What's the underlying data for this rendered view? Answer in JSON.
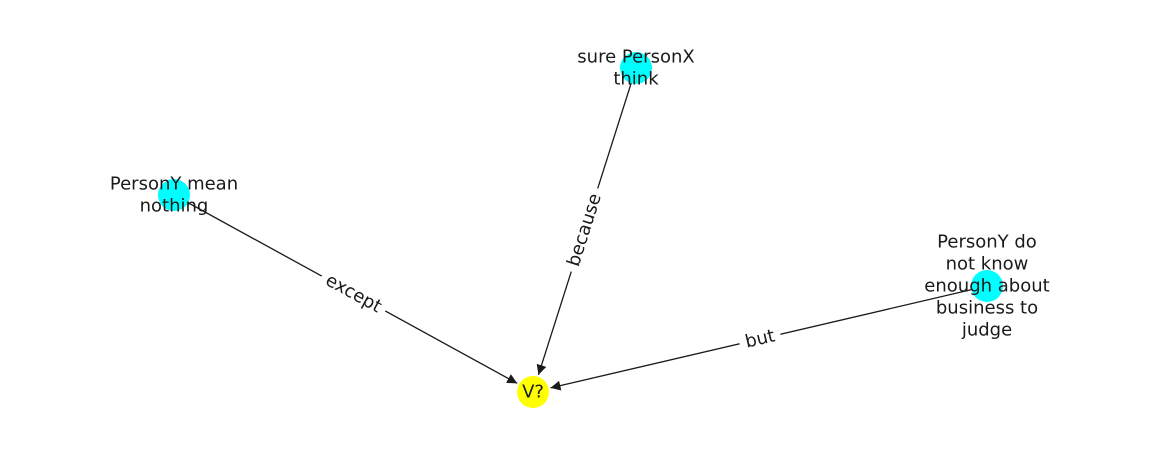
{
  "colors": {
    "premise_node": "#00ffff",
    "target_node": "#ffff00",
    "edge": "#1a1a1a",
    "background": "#ffffff"
  },
  "nodes": [
    {
      "id": "target",
      "lines": [
        "V?"
      ],
      "role": "target"
    },
    {
      "id": "sure-personx-think",
      "lines": [
        "sure PersonX",
        "think"
      ],
      "role": "premise"
    },
    {
      "id": "persony-mean-nothing",
      "lines": [
        "PersonY mean",
        "nothing"
      ],
      "role": "premise"
    },
    {
      "id": "persony-do-not-know",
      "lines": [
        "PersonY do",
        "not know",
        "enough about",
        "business to",
        "judge"
      ],
      "role": "premise"
    }
  ],
  "edges": [
    {
      "from": "persony-mean-nothing",
      "to": "target",
      "label": "except"
    },
    {
      "from": "sure-personx-think",
      "to": "target",
      "label": "because"
    },
    {
      "from": "persony-do-not-know",
      "to": "target",
      "label": "but"
    }
  ]
}
